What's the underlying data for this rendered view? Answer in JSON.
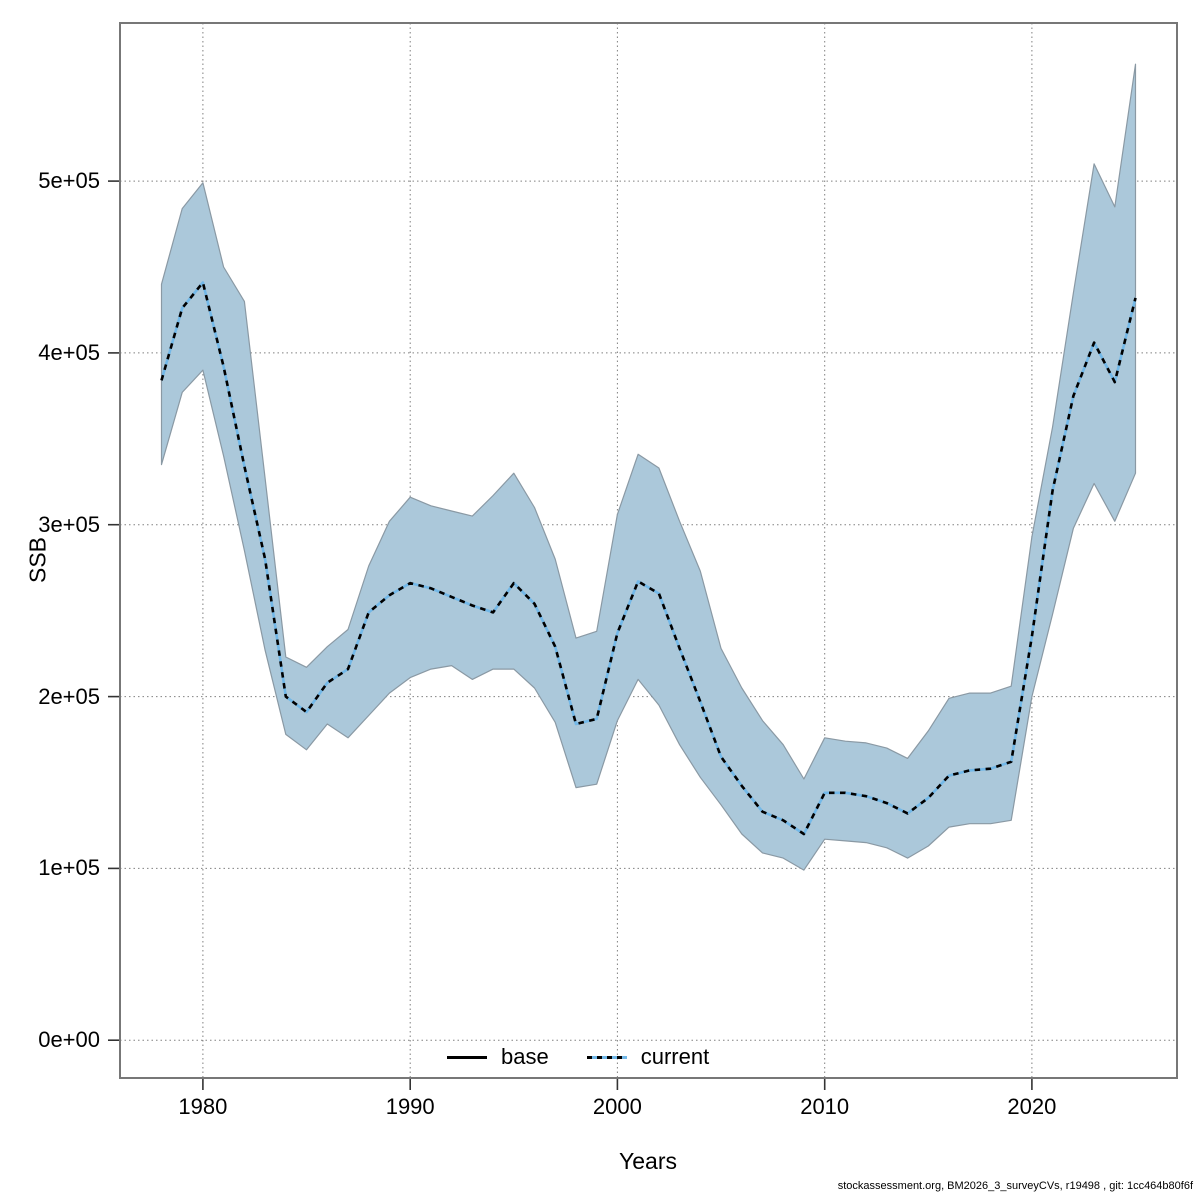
{
  "footer": {
    "caption": "stockassessment.org, BM2026_3_surveyCVs, r19498 , git: 1cc464b80f6f"
  },
  "chart_data": {
    "type": "area",
    "title": "",
    "xlabel": "Years",
    "ylabel": "SSB",
    "grid": true,
    "legend_position": "bottom-center",
    "x_range": [
      1976,
      2027
    ],
    "y_range": [
      -22000,
      592000
    ],
    "x_ticks": [
      {
        "value": 1980,
        "label": "1980"
      },
      {
        "value": 1990,
        "label": "1990"
      },
      {
        "value": 2000,
        "label": "2000"
      },
      {
        "value": 2010,
        "label": "2010"
      },
      {
        "value": 2020,
        "label": "2020"
      }
    ],
    "y_ticks": [
      {
        "value": 0,
        "label": "0e+00"
      },
      {
        "value": 100000,
        "label": "1e+05"
      },
      {
        "value": 200000,
        "label": "2e+05"
      },
      {
        "value": 300000,
        "label": "3e+05"
      },
      {
        "value": 400000,
        "label": "4e+05"
      },
      {
        "value": 500000,
        "label": "5e+05"
      }
    ],
    "years": [
      1978,
      1979,
      1980,
      1981,
      1982,
      1983,
      1984,
      1985,
      1986,
      1987,
      1988,
      1989,
      1990,
      1991,
      1992,
      1993,
      1994,
      1995,
      1996,
      1997,
      1998,
      1999,
      2000,
      2001,
      2002,
      2003,
      2004,
      2005,
      2006,
      2007,
      2008,
      2009,
      2010,
      2011,
      2012,
      2013,
      2014,
      2015,
      2016,
      2017,
      2018,
      2019,
      2020,
      2021,
      2022,
      2023,
      2024,
      2025
    ],
    "series": [
      {
        "name": "current",
        "style": "dotted",
        "values": [
          384000,
          426000,
          441000,
          392000,
          334000,
          280000,
          200000,
          191000,
          208000,
          216000,
          249000,
          259000,
          266000,
          263000,
          258000,
          253000,
          249000,
          266000,
          254000,
          229000,
          184000,
          187000,
          237000,
          267000,
          260000,
          228000,
          197000,
          165000,
          148000,
          133000,
          128000,
          120000,
          144000,
          144000,
          142000,
          138000,
          132000,
          141000,
          154000,
          157000,
          158000,
          162000,
          235000,
          320000,
          375000,
          406000,
          383000,
          432000
        ]
      }
    ],
    "band": {
      "name": "current-confidence-band",
      "lower": [
        335000,
        377000,
        390000,
        340000,
        285000,
        227000,
        178000,
        169000,
        184000,
        176000,
        189000,
        202000,
        211000,
        216000,
        218000,
        210000,
        216000,
        216000,
        205000,
        185000,
        147000,
        149000,
        186000,
        210000,
        195000,
        172000,
        153000,
        137000,
        120000,
        109000,
        106000,
        99000,
        117000,
        116000,
        115000,
        112000,
        106000,
        113000,
        124000,
        126000,
        126000,
        128000,
        200000,
        248000,
        298000,
        324000,
        302000,
        330000
      ],
      "upper": [
        440000,
        484000,
        499000,
        450000,
        430000,
        327000,
        223000,
        217000,
        229000,
        239000,
        276000,
        302000,
        316000,
        311000,
        308000,
        305000,
        317000,
        330000,
        310000,
        280000,
        234000,
        238000,
        306000,
        341000,
        333000,
        302000,
        273000,
        228000,
        205000,
        186000,
        172000,
        152000,
        176000,
        174000,
        173000,
        170000,
        164000,
        180000,
        199000,
        202000,
        202000,
        206000,
        293000,
        357000,
        435000,
        510000,
        485000,
        568000
      ]
    },
    "legend": [
      {
        "label": "base",
        "line": "solid",
        "color": "#000000"
      },
      {
        "label": "current",
        "line": "dotted",
        "color": "#72B8E8",
        "overlay_color": "#000000"
      }
    ],
    "colors": {
      "band_fill": "#ABC8DA",
      "band_edge": "#8A99A4",
      "current_line": "#72B8E8",
      "current_dash": "#000000",
      "grid": "#808080",
      "border": "#777777",
      "tick": "#333333",
      "text": "#000000"
    }
  }
}
